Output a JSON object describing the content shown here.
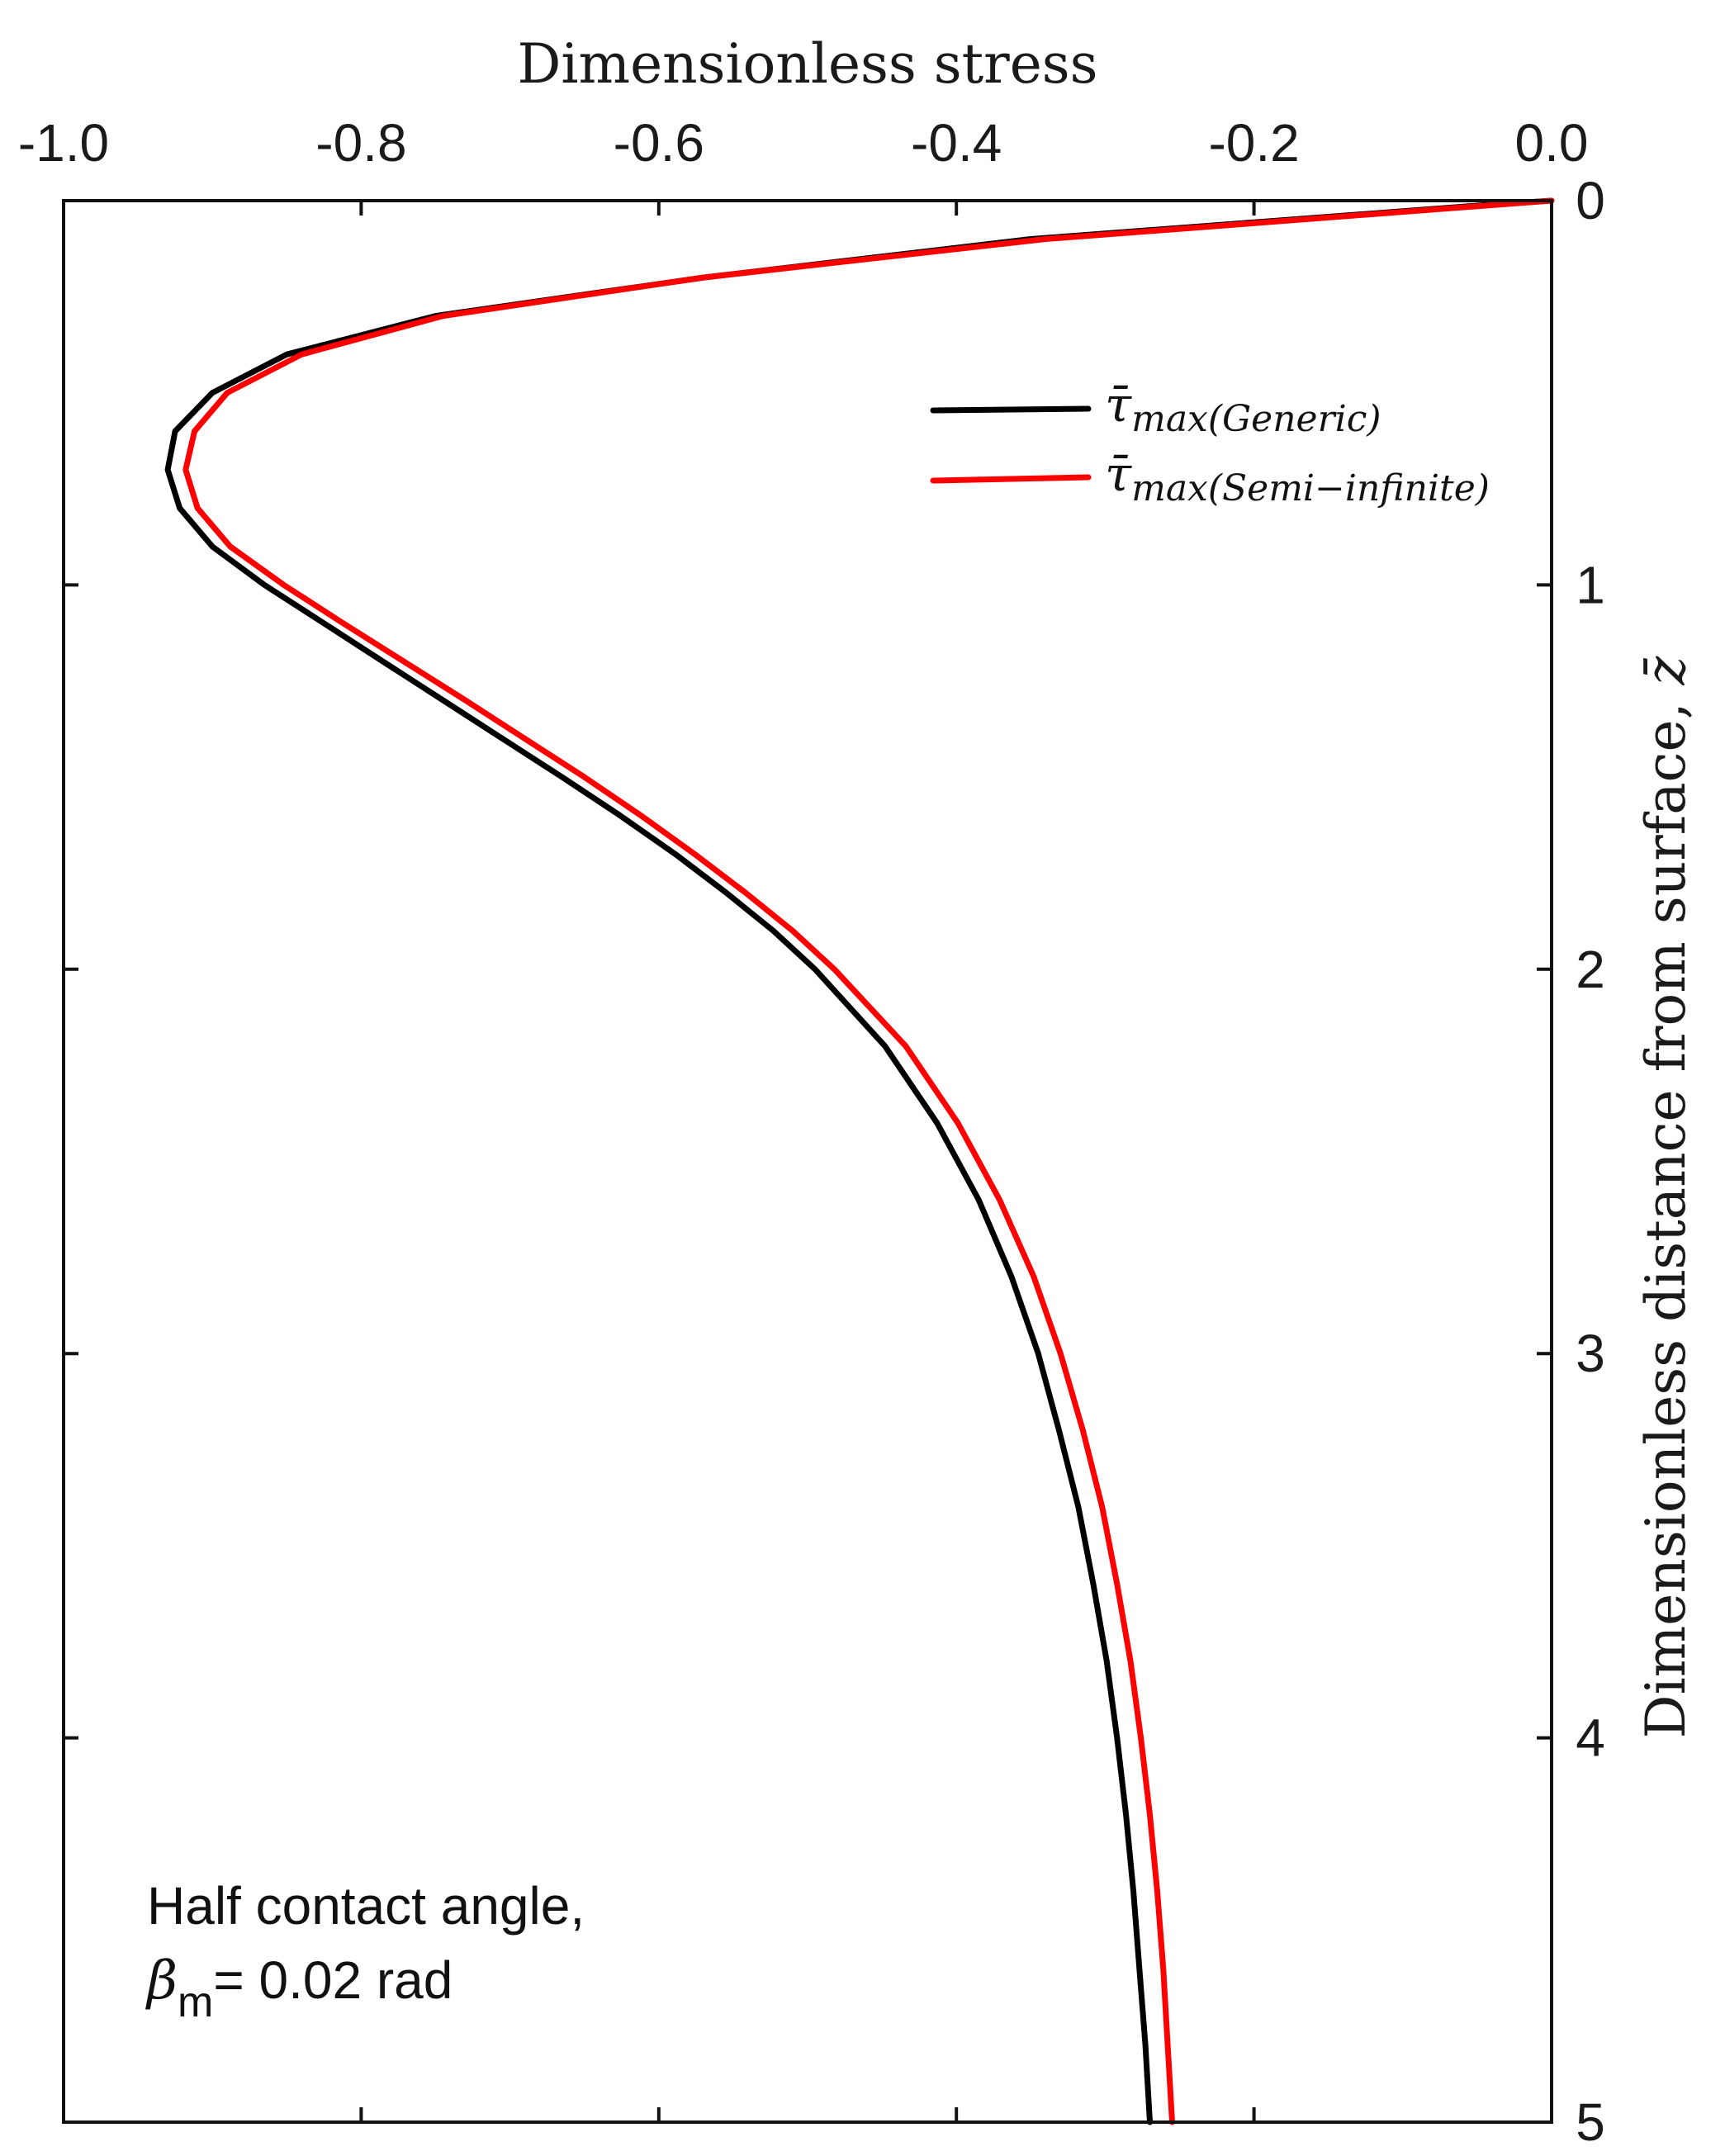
{
  "chart_data": {
    "type": "line",
    "title": "",
    "xlabel": "Dimensionless stress",
    "ylabel": "Dimensionless distance from surface, ",
    "ylabel_symbol": "z̄",
    "x_axis_position": "top",
    "y_axis_position": "right",
    "y_inverted": true,
    "xlim": [
      -1.0,
      0.0
    ],
    "ylim": [
      0,
      5
    ],
    "x_ticks": [
      -1.0,
      -0.8,
      -0.6,
      -0.4,
      -0.2,
      0.0
    ],
    "x_tick_labels": [
      "-1.0",
      "-0.8",
      "-0.6",
      "-0.4",
      "-0.2",
      "0.0"
    ],
    "y_ticks": [
      0,
      1,
      2,
      3,
      4,
      5
    ],
    "y_tick_labels": [
      "0",
      "1",
      "2",
      "3",
      "4",
      "5"
    ],
    "grid": false,
    "legend_position": "top-right",
    "series": [
      {
        "name": "τ̄max(Generic)",
        "symbol": "τ̄",
        "subscript": "max(Generic)",
        "color": "#000000",
        "points": [
          [
            0.0,
            0.0
          ],
          [
            -0.04,
            0.01
          ],
          [
            -0.35,
            0.1
          ],
          [
            -0.57,
            0.2
          ],
          [
            -0.75,
            0.3
          ],
          [
            -0.85,
            0.4
          ],
          [
            -0.9,
            0.5
          ],
          [
            -0.925,
            0.6
          ],
          [
            -0.93,
            0.7
          ],
          [
            -0.922,
            0.8
          ],
          [
            -0.9,
            0.9
          ],
          [
            -0.865,
            1.0
          ],
          [
            -0.825,
            1.1
          ],
          [
            -0.785,
            1.2
          ],
          [
            -0.745,
            1.3
          ],
          [
            -0.705,
            1.4
          ],
          [
            -0.665,
            1.5
          ],
          [
            -0.626,
            1.6
          ],
          [
            -0.589,
            1.7
          ],
          [
            -0.555,
            1.8
          ],
          [
            -0.523,
            1.9
          ],
          [
            -0.495,
            2.0
          ],
          [
            -0.448,
            2.2
          ],
          [
            -0.413,
            2.4
          ],
          [
            -0.385,
            2.6
          ],
          [
            -0.363,
            2.8
          ],
          [
            -0.345,
            3.0
          ],
          [
            -0.331,
            3.2
          ],
          [
            -0.318,
            3.4
          ],
          [
            -0.308,
            3.6
          ],
          [
            -0.299,
            3.8
          ],
          [
            -0.292,
            4.0
          ],
          [
            -0.286,
            4.2
          ],
          [
            -0.281,
            4.4
          ],
          [
            -0.277,
            4.6
          ],
          [
            -0.273,
            4.8
          ],
          [
            -0.27,
            5.0
          ]
        ]
      },
      {
        "name": "τ̄max(Semi−infinite)",
        "symbol": "τ̄",
        "subscript": "max(Semi−infinite)",
        "color": "#ff0000",
        "points": [
          [
            0.0,
            0.0
          ],
          [
            -0.035,
            0.01
          ],
          [
            -0.34,
            0.1
          ],
          [
            -0.57,
            0.2
          ],
          [
            -0.745,
            0.3
          ],
          [
            -0.84,
            0.4
          ],
          [
            -0.89,
            0.5
          ],
          [
            -0.912,
            0.6
          ],
          [
            -0.918,
            0.7
          ],
          [
            -0.91,
            0.8
          ],
          [
            -0.888,
            0.9
          ],
          [
            -0.852,
            1.0
          ],
          [
            -0.812,
            1.1
          ],
          [
            -0.771,
            1.2
          ],
          [
            -0.73,
            1.3
          ],
          [
            -0.69,
            1.4
          ],
          [
            -0.65,
            1.5
          ],
          [
            -0.612,
            1.6
          ],
          [
            -0.576,
            1.7
          ],
          [
            -0.542,
            1.8
          ],
          [
            -0.51,
            1.9
          ],
          [
            -0.482,
            2.0
          ],
          [
            -0.434,
            2.2
          ],
          [
            -0.399,
            2.4
          ],
          [
            -0.371,
            2.6
          ],
          [
            -0.348,
            2.8
          ],
          [
            -0.33,
            3.0
          ],
          [
            -0.315,
            3.2
          ],
          [
            -0.302,
            3.4
          ],
          [
            -0.292,
            3.6
          ],
          [
            -0.283,
            3.8
          ],
          [
            -0.276,
            4.0
          ],
          [
            -0.27,
            4.2
          ],
          [
            -0.265,
            4.4
          ],
          [
            -0.261,
            4.6
          ],
          [
            -0.258,
            4.8
          ],
          [
            -0.255,
            5.0
          ]
        ]
      }
    ],
    "annotation": {
      "line1": "Half contact angle,",
      "symbol": "β",
      "subscript": "m",
      "value_text": "= 0.02 rad"
    }
  }
}
